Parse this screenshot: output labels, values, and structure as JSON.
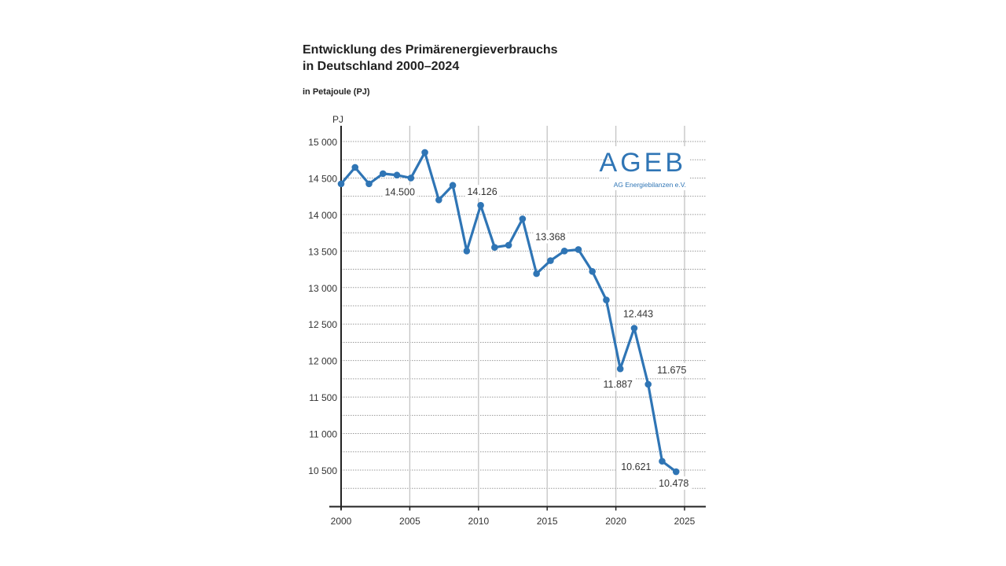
{
  "title_line1": "Entwicklung des Primärenergieverbrauchs",
  "title_line2": "in Deutschland 2000–2024",
  "subtitle": "in Petajoule (PJ)",
  "logo": {
    "text": "AGEB",
    "subtext": "AG Energiebilanzen e.V.",
    "color": "#2f75b5"
  },
  "chart_data": {
    "type": "line",
    "title": "Entwicklung des Primärenergieverbrauchs in Deutschland 2000–2024",
    "ylabel": "PJ",
    "xlabel": "",
    "x": [
      2000,
      2001,
      2002,
      2003,
      2004,
      2005,
      2006,
      2007,
      2008,
      2009,
      2010,
      2011,
      2012,
      2013,
      2014,
      2015,
      2016,
      2017,
      2018,
      2019,
      2020,
      2021,
      2022,
      2023,
      2024
    ],
    "values": [
      14420,
      14645,
      14420,
      14560,
      14540,
      14500,
      14850,
      14200,
      14400,
      13500,
      14126,
      13550,
      13580,
      13940,
      13190,
      13368,
      13500,
      13520,
      13220,
      12830,
      11887,
      12443,
      11675,
      10621,
      10478
    ],
    "data_labels": [
      {
        "year": 2005,
        "text": "14.500"
      },
      {
        "year": 2010,
        "text": "14.126"
      },
      {
        "year": 2015,
        "text": "13.368"
      },
      {
        "year": 2020,
        "text": "11.887"
      },
      {
        "year": 2021,
        "text": "12.443"
      },
      {
        "year": 2022,
        "text": "11.675"
      },
      {
        "year": 2023,
        "text": "10.621"
      },
      {
        "year": 2024,
        "text": "10.478"
      }
    ],
    "yticks": [
      10500,
      11000,
      11500,
      12000,
      12500,
      13000,
      13500,
      14000,
      14500,
      15000
    ],
    "ytick_labels": [
      "10 500",
      "11 000",
      "11 500",
      "12 000",
      "12 500",
      "13 000",
      "13 500",
      "14 000",
      "14 500",
      "15 000"
    ],
    "xticks": [
      2000,
      2005,
      2010,
      2015,
      2020,
      2025
    ],
    "xtick_labels": [
      "2000",
      "2005",
      "2010",
      "2015",
      "2020",
      "2025"
    ],
    "ylim": [
      10000,
      15250
    ],
    "xlim": [
      2000,
      2025
    ],
    "grid": true,
    "line_color": "#2f75b5"
  }
}
